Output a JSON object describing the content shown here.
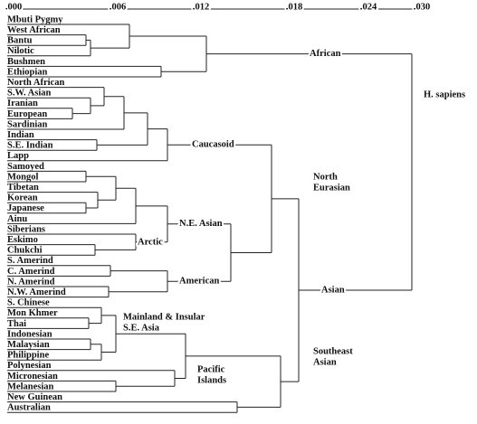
{
  "axis": {
    "ticks": [
      ".000",
      ".006",
      ".012",
      ".018",
      ".024",
      ".030"
    ]
  },
  "leaves": [
    "Mbuti Pygmy",
    "West African",
    "Bantu",
    "Nilotic",
    "Bushmen",
    "Ethiopian",
    "North African",
    "S.W. Asian",
    "Iranian",
    "European",
    "Sardinian",
    "Indian",
    "S.E. Indian",
    "Lapp",
    "Samoyed",
    "Mongol",
    "Tibetan",
    "Korean",
    "Japanese",
    "Ainu",
    "Siberians",
    "Eskimo",
    "Chukchi",
    "S. Amerind",
    "C. Amerind",
    "N. Amerind",
    "N.W. Amerind",
    "S. Chinese",
    "Mon Khmer",
    "Thai",
    "Indonesian",
    "Malaysian",
    "Philippine",
    "Polynesian",
    "Micronesian",
    "Melanesian",
    "New Guinean",
    "Australian"
  ],
  "clusters": {
    "african": "African",
    "h_sapiens": "H. sapiens",
    "caucasoid": "Caucasoid",
    "north_eurasian": [
      "North",
      "Eurasian"
    ],
    "ne_asian": "N.E. Asian",
    "arctic": "Arctic",
    "american": "American",
    "asian": "Asian",
    "mainland": [
      "Mainland & Insular",
      "S.E. Asia"
    ],
    "pacific": [
      "Pacific",
      "Islands"
    ],
    "southeast_asian": [
      "Southeast",
      "Asian"
    ]
  }
}
